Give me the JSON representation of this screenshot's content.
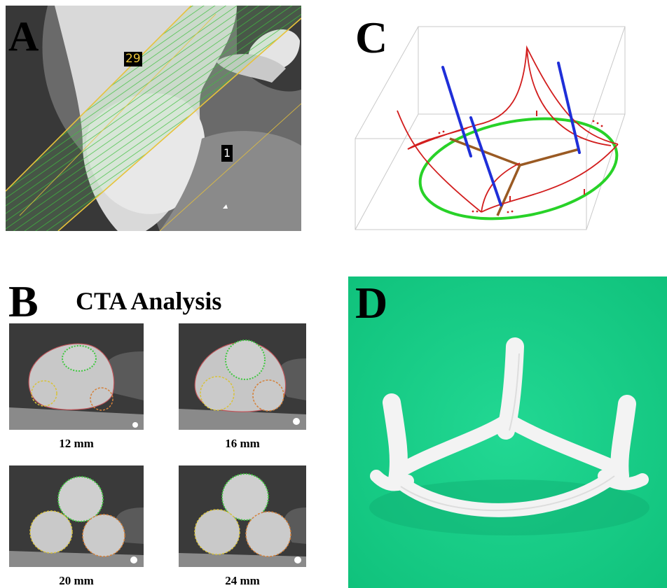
{
  "panels": {
    "a": {
      "letter": "A",
      "slice_labels": [
        "29",
        "1"
      ]
    },
    "b": {
      "letter": "B",
      "title": "CTA Analysis",
      "slices": [
        "12 mm",
        "16 mm",
        "20 mm",
        "24 mm"
      ]
    },
    "c": {
      "letter": "C"
    },
    "d": {
      "letter": "D"
    }
  },
  "colors": {
    "stripe_green": "#3fbf3f",
    "boundary_yellow": "#e8c23a",
    "leaflet_red": "#d21e1e",
    "axis_blue": "#1f2fd8",
    "annulus_green": "#28d228",
    "commissure_brown": "#9a5a23",
    "background_teal": "#18cf86"
  }
}
